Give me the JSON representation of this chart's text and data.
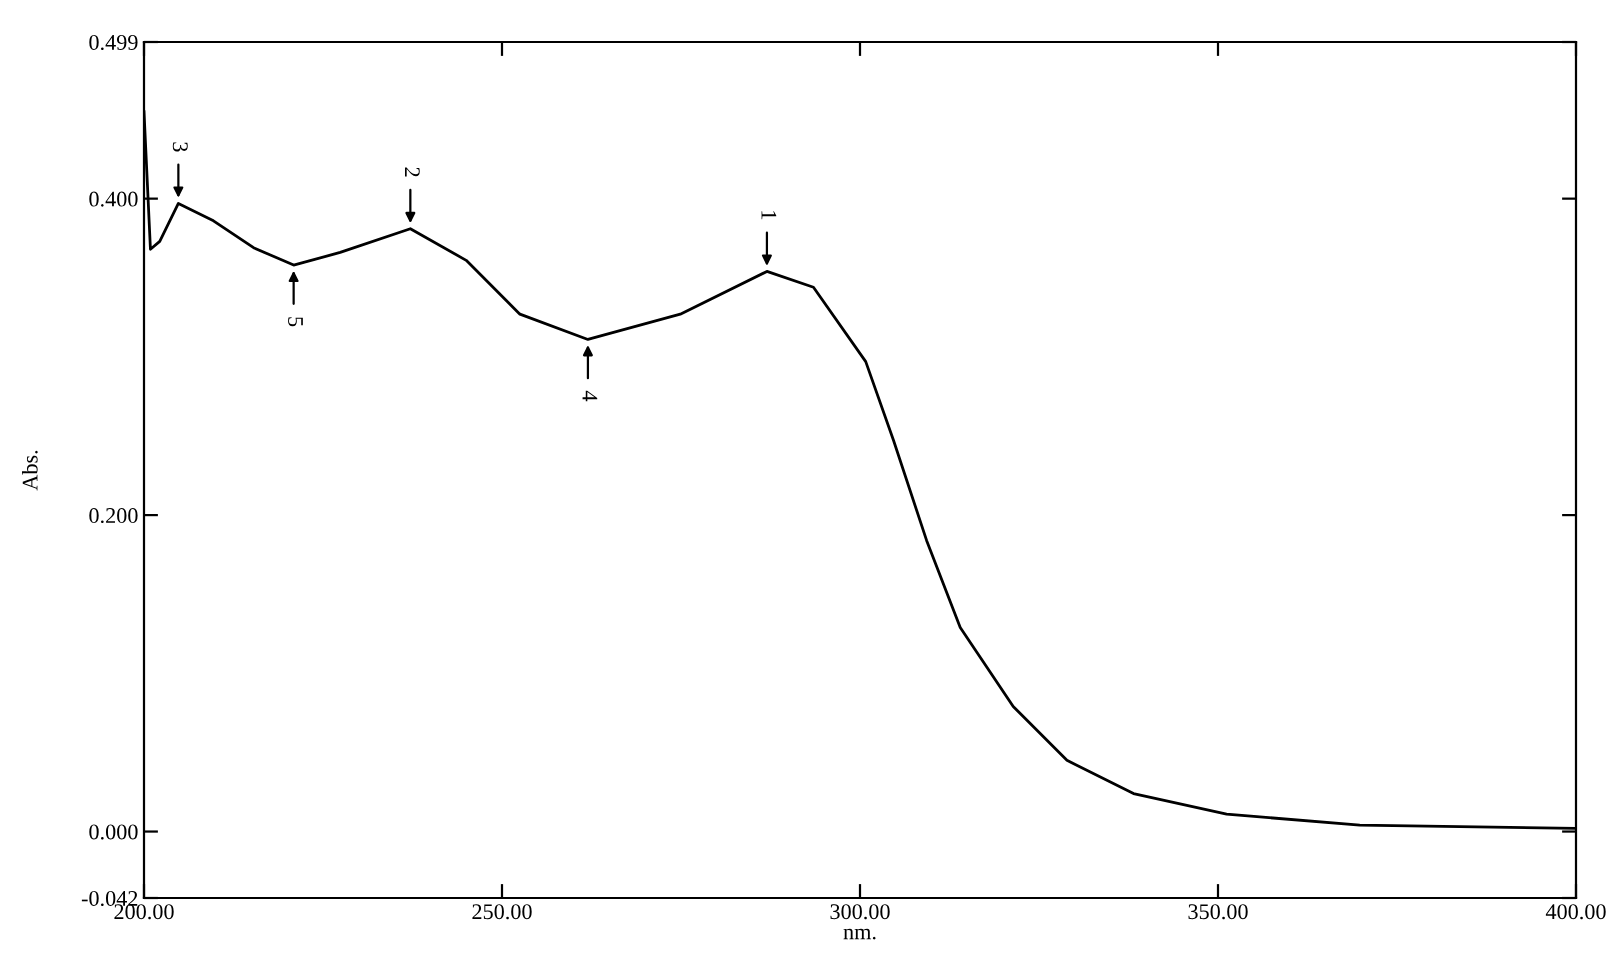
{
  "chart_data": {
    "type": "line",
    "xlabel": "nm.",
    "ylabel": "Abs.",
    "x": [
      200.0,
      200.9,
      202.2,
      204.8,
      209.7,
      215.3,
      220.9,
      227.4,
      237.2,
      245.0,
      252.5,
      262.0,
      274.9,
      287.0,
      293.5,
      300.8,
      304.7,
      309.3,
      314.0,
      321.4,
      328.9,
      338.2,
      351.2,
      369.8,
      400.0
    ],
    "series": [
      {
        "color": "#000000",
        "values": [
          0.455,
          0.368,
          0.373,
          0.397,
          0.386,
          0.369,
          0.358,
          0.366,
          0.381,
          0.361,
          0.327,
          0.311,
          0.327,
          0.354,
          0.344,
          0.297,
          0.247,
          0.184,
          0.129,
          0.079,
          0.045,
          0.024,
          0.011,
          0.004,
          0.002
        ]
      }
    ],
    "xlim": [
      200,
      400
    ],
    "ylim": [
      -0.042,
      0.499
    ],
    "xticks": [
      {
        "value": 200,
        "label": "200.00"
      },
      {
        "value": 250,
        "label": "250.00"
      },
      {
        "value": 300,
        "label": "300.00"
      },
      {
        "value": 350,
        "label": "350.00"
      },
      {
        "value": 400,
        "label": "400.00"
      }
    ],
    "yticks": [
      {
        "value": -0.042,
        "label": "-0.042"
      },
      {
        "value": 0.0,
        "label": "0.000"
      },
      {
        "value": 0.2,
        "label": "0.200"
      },
      {
        "value": 0.4,
        "label": "0.400"
      },
      {
        "value": 0.499,
        "label": "0.499"
      }
    ],
    "annotations": [
      {
        "text": "1",
        "x": 287.0,
        "y": 0.354
      },
      {
        "text": "2",
        "x": 237.2,
        "y": 0.381
      },
      {
        "text": "3",
        "x": 204.8,
        "y": 0.397
      },
      {
        "text": "4",
        "x": 262.0,
        "y": 0.311
      },
      {
        "text": "5",
        "x": 220.9,
        "y": 0.358
      }
    ],
    "grid": false,
    "legend": false,
    "line_style": "solid",
    "marker": "none"
  }
}
